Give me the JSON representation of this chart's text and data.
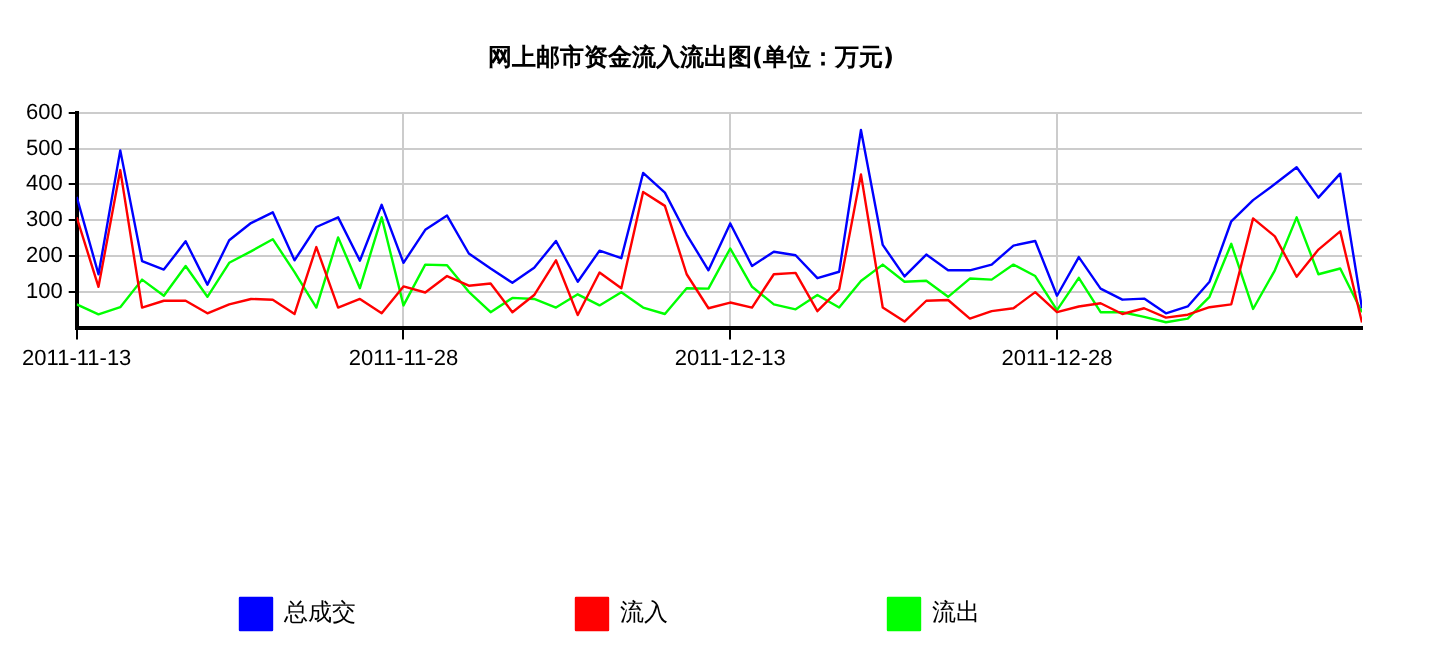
{
  "chart_data": {
    "type": "line",
    "title": "网上邮市资金流入流出图(单位：万元)",
    "x": [
      "2011-11-13",
      "2011-11-14",
      "2011-11-15",
      "2011-11-16",
      "2011-11-17",
      "2011-11-18",
      "2011-11-19",
      "2011-11-20",
      "2011-11-21",
      "2011-11-22",
      "2011-11-23",
      "2011-11-24",
      "2011-11-25",
      "2011-11-26",
      "2011-11-27",
      "2011-11-28",
      "2011-11-29",
      "2011-11-30",
      "2011-12-01",
      "2011-12-02",
      "2011-12-03",
      "2011-12-04",
      "2011-12-05",
      "2011-12-06",
      "2011-12-07",
      "2011-12-08",
      "2011-12-09",
      "2011-12-10",
      "2011-12-11",
      "2011-12-12",
      "2011-12-13",
      "2011-12-14",
      "2011-12-15",
      "2011-12-16",
      "2011-12-17",
      "2011-12-18",
      "2011-12-19",
      "2011-12-20",
      "2011-12-21",
      "2011-12-22",
      "2011-12-23",
      "2011-12-24",
      "2011-12-25",
      "2011-12-26",
      "2011-12-27",
      "2011-12-28",
      "2011-12-29",
      "2011-12-30",
      "2011-12-31",
      "2012-01-01",
      "2012-01-02",
      "2012-01-03",
      "2012-01-04",
      "2012-01-05",
      "2012-01-06",
      "2012-01-07",
      "2012-01-08",
      "2012-01-09",
      "2012-01-10",
      "2012-01-11"
    ],
    "series": [
      {
        "name": "总成交",
        "color": "#0000ff",
        "values": [
          365,
          149,
          495,
          186,
          162,
          241,
          120,
          244,
          292,
          322,
          188,
          281,
          308,
          187,
          343,
          181,
          273,
          313,
          207,
          165,
          125,
          167,
          242,
          128,
          215,
          194,
          432,
          377,
          260,
          160,
          291,
          172,
          212,
          202,
          138,
          156,
          552,
          231,
          143,
          204,
          160,
          160,
          176,
          229,
          242,
          89,
          197,
          109,
          78,
          81,
          40,
          59,
          128,
          297,
          356,
          401,
          448,
          363,
          430,
          54
        ]
      },
      {
        "name": "流入",
        "color": "#ff0000",
        "values": [
          308,
          114,
          440,
          56,
          75,
          75,
          40,
          65,
          80,
          78,
          38,
          225,
          56,
          80,
          40,
          115,
          98,
          144,
          117,
          123,
          43,
          91,
          188,
          35,
          154,
          110,
          379,
          340,
          149,
          54,
          70,
          56,
          149,
          153,
          46,
          107,
          428,
          56,
          17,
          75,
          77,
          25,
          46,
          54,
          99,
          43,
          59,
          68,
          38,
          54,
          28,
          36,
          57,
          65,
          305,
          255,
          142,
          218,
          269,
          14
        ]
      },
      {
        "name": "流出",
        "color": "#00ff00",
        "values": [
          65,
          37,
          57,
          134,
          89,
          172,
          86,
          181,
          213,
          247,
          155,
          56,
          252,
          110,
          308,
          62,
          176,
          174,
          100,
          43,
          83,
          80,
          56,
          93,
          62,
          99,
          56,
          38,
          110,
          109,
          221,
          114,
          65,
          51,
          91,
          56,
          130,
          176,
          128,
          131,
          86,
          137,
          134,
          176,
          144,
          49,
          139,
          43,
          43,
          30,
          15,
          25,
          86,
          234,
          52,
          160,
          308,
          149,
          165,
          43
        ]
      }
    ],
    "xlim": [
      "2011-11-13",
      "2012-01-11"
    ],
    "xticks": [
      "2011-11-13",
      "2011-11-28",
      "2011-12-13",
      "2011-12-28"
    ],
    "ylim": [
      0,
      600
    ],
    "yticks": [
      100,
      200,
      300,
      400,
      500,
      600
    ],
    "grid": true,
    "legend": "bottom",
    "marker": "none",
    "line_style": "solid"
  }
}
